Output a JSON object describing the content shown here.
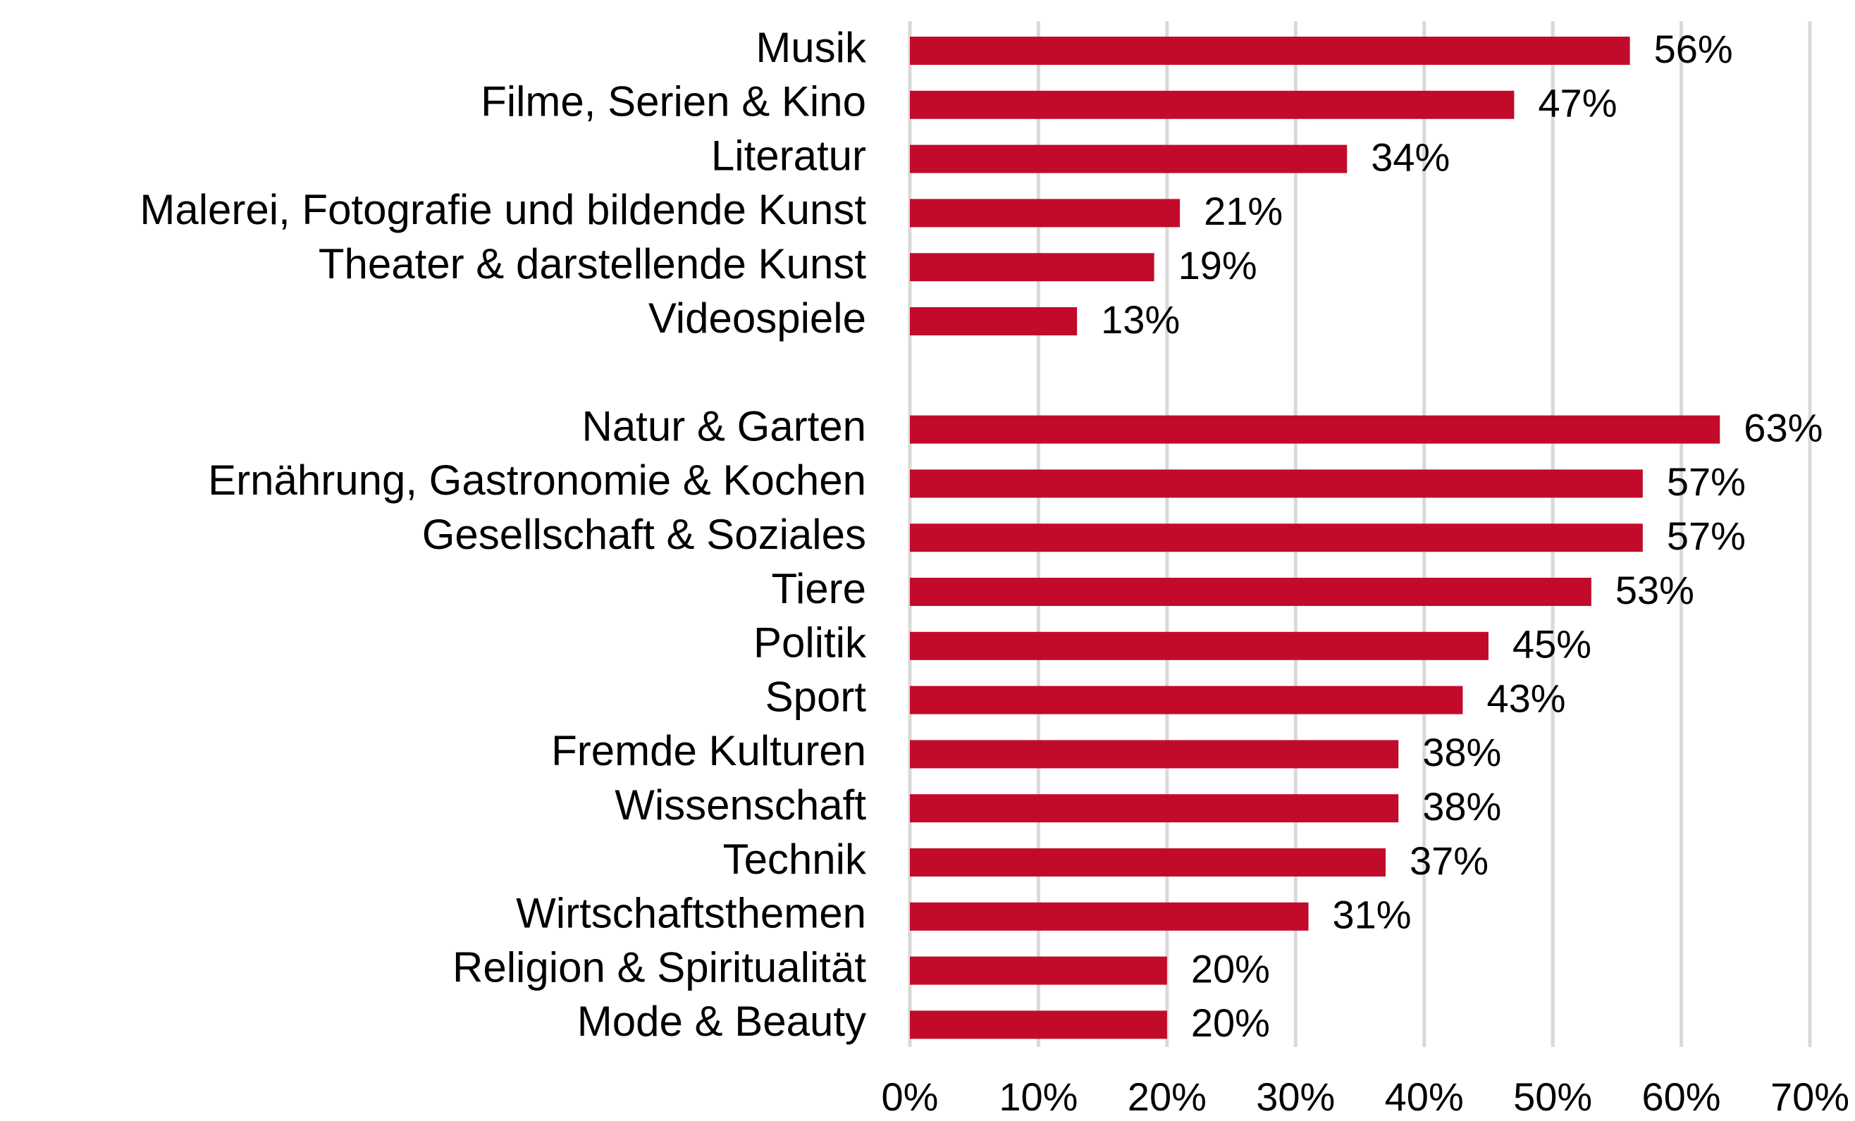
{
  "chart_data": {
    "type": "barh",
    "categories": [
      "Musik",
      "Filme, Serien & Kino",
      "Literatur",
      "Malerei, Fotografie und bildende Kunst",
      "Theater & darstellende Kunst",
      "Videospiele",
      null,
      "Natur & Garten",
      "Ernährung, Gastronomie & Kochen",
      "Gesellschaft & Soziales",
      "Tiere",
      "Politik",
      "Sport",
      "Fremde Kulturen",
      "Wissenschaft",
      "Technik",
      "Wirtschaftsthemen",
      "Religion & Spiritualität",
      "Mode & Beauty"
    ],
    "values": [
      56,
      47,
      34,
      21,
      19,
      13,
      null,
      63,
      57,
      57,
      53,
      45,
      43,
      38,
      38,
      37,
      31,
      20,
      20
    ],
    "value_labels": [
      "56%",
      "47%",
      "34%",
      "21%",
      "19%",
      "13%",
      null,
      "63%",
      "57%",
      "57%",
      "53%",
      "45%",
      "43%",
      "38%",
      "38%",
      "37%",
      "31%",
      "20%",
      "20%"
    ],
    "color": "#c20b2a",
    "xlim": [
      0,
      70
    ],
    "xticks": [
      {
        "value": 0,
        "label": "0%"
      },
      {
        "value": 10,
        "label": "10%"
      },
      {
        "value": 20,
        "label": "20%"
      },
      {
        "value": 30,
        "label": "30%"
      },
      {
        "value": 40,
        "label": "40%"
      },
      {
        "value": 50,
        "label": "50%"
      },
      {
        "value": 60,
        "label": "60%"
      },
      {
        "value": 70,
        "label": "70%"
      }
    ],
    "grid": true
  }
}
